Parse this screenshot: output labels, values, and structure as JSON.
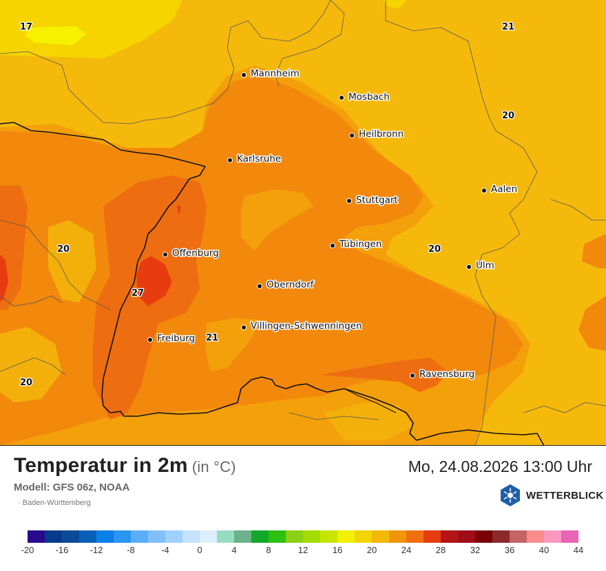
{
  "title": "Temperatur in 2m",
  "unit": "(in °C)",
  "datetime": "Mo, 24.08.2026 13:00 Uhr",
  "model": "Modell: GFS 06z, NOAA",
  "region": "· Baden-Württemberg",
  "brand": {
    "name": "WETTERBLICK",
    "logo_icon": "sun-snowflake-hexagon-icon"
  },
  "colors": {
    "level_16": "#f5e000",
    "level_20": "#f5b90c",
    "level_22": "#f4a20a",
    "level_24": "#f2880c",
    "level_26": "#ee6d10",
    "level_28": "#e83a10",
    "border": "#111111",
    "district": "#555555"
  },
  "cities": [
    {
      "name": "Mannheim"
    },
    {
      "name": "Mosbach"
    },
    {
      "name": "Heilbronn"
    },
    {
      "name": "Karlsruhe"
    },
    {
      "name": "Aalen"
    },
    {
      "name": "Stuttgart"
    },
    {
      "name": "Offenburg"
    },
    {
      "name": "Tübingen"
    },
    {
      "name": "Ulm"
    },
    {
      "name": "Oberndorf"
    },
    {
      "name": "Villingen-Schwenningen"
    },
    {
      "name": "Freiburg"
    },
    {
      "name": "Ravensburg"
    }
  ],
  "iso_labels": [
    "17",
    "21",
    "20",
    "20",
    "20",
    "27",
    "21",
    "20"
  ],
  "legend": {
    "colors": [
      "#2a0a8c",
      "#083a8c",
      "#0a4a96",
      "#0a60b8",
      "#0a80e6",
      "#2a96f0",
      "#5aaef8",
      "#80c0fa",
      "#a0d0fc",
      "#c4e2fc",
      "#dceefc",
      "#96dcc0",
      "#6cb28c",
      "#12a82a",
      "#2cc010",
      "#8ad014",
      "#a2dc00",
      "#c8e400",
      "#f0f000",
      "#f2d400",
      "#f2b80a",
      "#f2940c",
      "#f07010",
      "#e63c10",
      "#b41414",
      "#a00c18",
      "#7a0008",
      "#8c2a2a",
      "#c46464",
      "#fa8c8c",
      "#fa98c0",
      "#e864b4"
    ],
    "ticks": [
      "-20",
      "-16",
      "-12",
      "-8",
      "-4",
      "0",
      "4",
      "8",
      "12",
      "16",
      "20",
      "24",
      "28",
      "32",
      "36",
      "40",
      "44"
    ]
  }
}
